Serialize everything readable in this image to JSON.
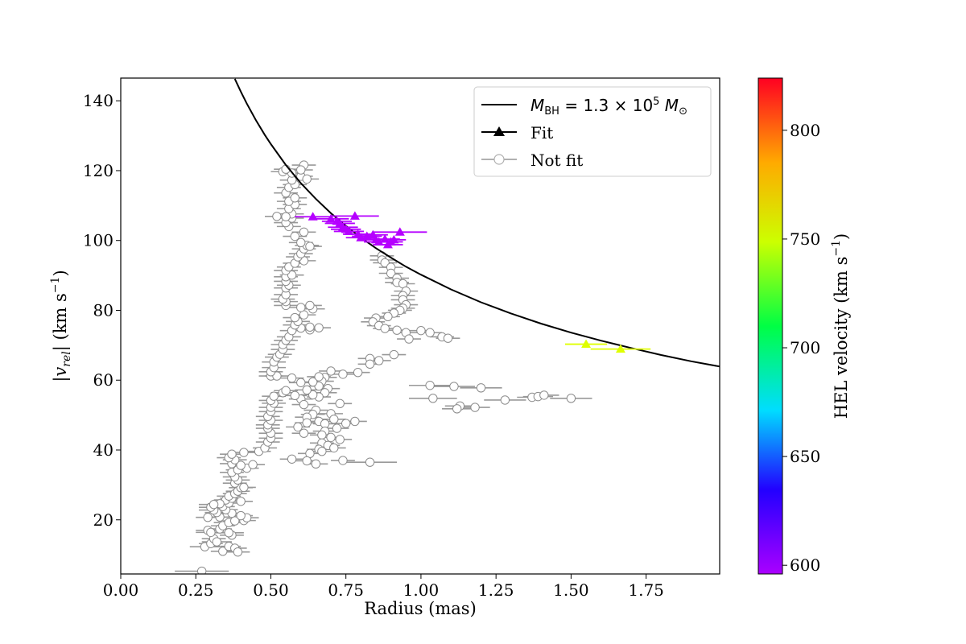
{
  "chart_data": {
    "type": "scatter",
    "xlabel": "Radius (mas)",
    "ylabel_prefix": "|",
    "ylabel_var": "v",
    "ylabel_sub": "rel",
    "ylabel_mid": "| (km s",
    "ylabel_sup": "−1",
    "ylabel_suffix": ")",
    "xlim": [
      0.0,
      1.995
    ],
    "ylim": [
      4.5,
      146.5
    ],
    "xticks": [
      0.0,
      0.25,
      0.5,
      0.75,
      1.0,
      1.25,
      1.5,
      1.75
    ],
    "xtick_labels": [
      "0.00",
      "0.25",
      "0.50",
      "0.75",
      "1.00",
      "1.25",
      "1.50",
      "1.75"
    ],
    "yticks": [
      20,
      40,
      60,
      80,
      100,
      120,
      140
    ],
    "ytick_labels": [
      "20",
      "40",
      "60",
      "80",
      "100",
      "120",
      "140"
    ],
    "legend": {
      "placement": "top-right",
      "entries": [
        {
          "label_prefix": "M",
          "label_sub": "BH",
          "label_mid": " = 1.3 × 10",
          "label_sup": "5",
          "label_mid2": " M",
          "label_sub2": "⊙",
          "kind": "line",
          "color": "#000000"
        },
        {
          "label": "Fit",
          "kind": "triangle",
          "color": "#000000"
        },
        {
          "label": "Not fit",
          "kind": "circle",
          "color": "#b0b0b0"
        }
      ]
    },
    "colorbar": {
      "label_text": "HEL velocity (km s",
      "label_sup": "−1",
      "label_end": ")",
      "min": 596,
      "max": 824,
      "ticks": [
        600,
        650,
        700,
        750,
        800
      ],
      "tick_labels": [
        "600",
        "650",
        "700",
        "750",
        "800"
      ],
      "colormap": "gist_rainbow_r"
    },
    "model_curve": {
      "name": "M_BH = 1.3e5 Msun",
      "formula": "v = 90.2 / sqrt(r)",
      "x": [
        0.38,
        0.4,
        0.42,
        0.45,
        0.48,
        0.5,
        0.55,
        0.6,
        0.65,
        0.7,
        0.75,
        0.8,
        0.85,
        0.9,
        0.95,
        1.0,
        1.1,
        1.2,
        1.3,
        1.4,
        1.5,
        1.6,
        1.7,
        1.8,
        1.9,
        1.995
      ],
      "y": [
        146.3,
        142.6,
        139.2,
        134.5,
        130.2,
        127.6,
        121.6,
        116.4,
        111.9,
        107.8,
        104.2,
        100.8,
        97.8,
        95.1,
        92.5,
        90.2,
        86.0,
        82.3,
        79.1,
        76.2,
        73.6,
        71.3,
        69.2,
        67.2,
        65.4,
        63.9
      ],
      "color": "#000000"
    },
    "fit_points": [
      {
        "x": 0.64,
        "y": 106.8,
        "xerr": 0.06,
        "vel": 598
      },
      {
        "x": 0.7,
        "y": 106.2,
        "xerr": 0.06,
        "vel": 598
      },
      {
        "x": 0.72,
        "y": 105.5,
        "xerr": 0.05,
        "vel": 598
      },
      {
        "x": 0.73,
        "y": 104.9,
        "xerr": 0.05,
        "vel": 598
      },
      {
        "x": 0.74,
        "y": 103.8,
        "xerr": 0.05,
        "vel": 598
      },
      {
        "x": 0.75,
        "y": 103.2,
        "xerr": 0.05,
        "vel": 598
      },
      {
        "x": 0.76,
        "y": 102.6,
        "xerr": 0.05,
        "vel": 598
      },
      {
        "x": 0.78,
        "y": 107.0,
        "xerr": 0.08,
        "vel": 598
      },
      {
        "x": 0.79,
        "y": 101.8,
        "xerr": 0.05,
        "vel": 598
      },
      {
        "x": 0.8,
        "y": 100.8,
        "xerr": 0.05,
        "vel": 598
      },
      {
        "x": 0.82,
        "y": 101.2,
        "xerr": 0.05,
        "vel": 598
      },
      {
        "x": 0.84,
        "y": 101.6,
        "xerr": 0.05,
        "vel": 598
      },
      {
        "x": 0.85,
        "y": 100.2,
        "xerr": 0.05,
        "vel": 598
      },
      {
        "x": 0.86,
        "y": 99.6,
        "xerr": 0.05,
        "vel": 598
      },
      {
        "x": 0.88,
        "y": 100.4,
        "xerr": 0.05,
        "vel": 598
      },
      {
        "x": 0.89,
        "y": 98.8,
        "xerr": 0.05,
        "vel": 598
      },
      {
        "x": 0.9,
        "y": 99.6,
        "xerr": 0.04,
        "vel": 598
      },
      {
        "x": 0.91,
        "y": 100.2,
        "xerr": 0.04,
        "vel": 598
      },
      {
        "x": 0.93,
        "y": 102.4,
        "xerr": 0.09,
        "vel": 598
      },
      {
        "x": 1.55,
        "y": 70.3,
        "xerr": 0.07,
        "vel": 770
      },
      {
        "x": 1.665,
        "y": 68.9,
        "xerr": 0.1,
        "vel": 770
      }
    ],
    "not_fit_points": [
      [
        0.27,
        5.3,
        0.09
      ],
      [
        0.28,
        12.3,
        0.05
      ],
      [
        0.3,
        13.2,
        0.04
      ],
      [
        0.31,
        14.6,
        0.04
      ],
      [
        0.32,
        13.7,
        0.05
      ],
      [
        0.34,
        11.0,
        0.04
      ],
      [
        0.36,
        12.4,
        0.04
      ],
      [
        0.38,
        11.9,
        0.04
      ],
      [
        0.39,
        10.8,
        0.04
      ],
      [
        0.37,
        15.6,
        0.04
      ],
      [
        0.36,
        16.3,
        0.05
      ],
      [
        0.29,
        17.0,
        0.04
      ],
      [
        0.3,
        16.4,
        0.05
      ],
      [
        0.33,
        17.4,
        0.04
      ],
      [
        0.34,
        18.3,
        0.04
      ],
      [
        0.36,
        19.2,
        0.05
      ],
      [
        0.38,
        19.7,
        0.04
      ],
      [
        0.41,
        19.8,
        0.04
      ],
      [
        0.42,
        20.6,
        0.04
      ],
      [
        0.4,
        21.2,
        0.04
      ],
      [
        0.33,
        20.8,
        0.05
      ],
      [
        0.29,
        20.7,
        0.04
      ],
      [
        0.37,
        21.9,
        0.04
      ],
      [
        0.32,
        22.1,
        0.04
      ],
      [
        0.35,
        22.9,
        0.04
      ],
      [
        0.31,
        22.8,
        0.05
      ],
      [
        0.3,
        23.6,
        0.04
      ],
      [
        0.34,
        23.8,
        0.04
      ],
      [
        0.36,
        24.8,
        0.04
      ],
      [
        0.35,
        25.7,
        0.04
      ],
      [
        0.33,
        24.6,
        0.04
      ],
      [
        0.31,
        24.4,
        0.05
      ],
      [
        0.4,
        25.3,
        0.04
      ],
      [
        0.37,
        26.2,
        0.04
      ],
      [
        0.36,
        26.8,
        0.04
      ],
      [
        0.38,
        27.5,
        0.04
      ],
      [
        0.39,
        28.2,
        0.04
      ],
      [
        0.4,
        29.2,
        0.04
      ],
      [
        0.41,
        29.3,
        0.04
      ],
      [
        0.38,
        30.5,
        0.04
      ],
      [
        0.39,
        31.4,
        0.04
      ],
      [
        0.38,
        32.3,
        0.04
      ],
      [
        0.37,
        33.6,
        0.04
      ],
      [
        0.39,
        34.3,
        0.04
      ],
      [
        0.42,
        34.8,
        0.04
      ],
      [
        0.44,
        35.8,
        0.04
      ],
      [
        0.4,
        35.6,
        0.04
      ],
      [
        0.37,
        36.1,
        0.04
      ],
      [
        0.38,
        37.2,
        0.04
      ],
      [
        0.36,
        37.8,
        0.04
      ],
      [
        0.37,
        38.8,
        0.04
      ],
      [
        0.41,
        39.3,
        0.04
      ],
      [
        0.46,
        39.6,
        0.04
      ],
      [
        0.48,
        40.6,
        0.04
      ],
      [
        0.49,
        42.3,
        0.04
      ],
      [
        0.5,
        43.4,
        0.04
      ],
      [
        0.5,
        44.8,
        0.04
      ],
      [
        0.49,
        46.2,
        0.04
      ],
      [
        0.49,
        47.2,
        0.04
      ],
      [
        0.5,
        48.5,
        0.04
      ],
      [
        0.49,
        49.6,
        0.04
      ],
      [
        0.5,
        51.0,
        0.04
      ],
      [
        0.5,
        52.2,
        0.04
      ],
      [
        0.51,
        53.4,
        0.04
      ],
      [
        0.5,
        54.2,
        0.04
      ],
      [
        0.51,
        55.4,
        0.04
      ],
      [
        0.54,
        56.4,
        0.04
      ],
      [
        0.55,
        57.0,
        0.04
      ],
      [
        0.5,
        61.2,
        0.04
      ],
      [
        0.52,
        61.2,
        0.04
      ],
      [
        0.5,
        62.4,
        0.04
      ],
      [
        0.51,
        63.6,
        0.04
      ],
      [
        0.51,
        65.2,
        0.04
      ],
      [
        0.52,
        66.6,
        0.04
      ],
      [
        0.53,
        67.4,
        0.04
      ],
      [
        0.54,
        68.8,
        0.04
      ],
      [
        0.54,
        70.2,
        0.04
      ],
      [
        0.55,
        71.4,
        0.04
      ],
      [
        0.56,
        72.4,
        0.04
      ],
      [
        0.57,
        74.2,
        0.04
      ],
      [
        0.6,
        74.9,
        0.04
      ],
      [
        0.63,
        74.4,
        0.04
      ],
      [
        0.63,
        75.2,
        0.04
      ],
      [
        0.66,
        75.0,
        0.04
      ],
      [
        0.58,
        75.8,
        0.04
      ],
      [
        0.59,
        76.8,
        0.04
      ],
      [
        0.58,
        77.9,
        0.04
      ],
      [
        0.61,
        78.7,
        0.04
      ],
      [
        0.6,
        80.8,
        0.04
      ],
      [
        0.64,
        80.4,
        0.04
      ],
      [
        0.63,
        81.4,
        0.04
      ],
      [
        0.55,
        81.4,
        0.04
      ],
      [
        0.55,
        82.5,
        0.04
      ],
      [
        0.54,
        83.2,
        0.04
      ],
      [
        0.55,
        84.5,
        0.04
      ],
      [
        0.55,
        86.4,
        0.04
      ],
      [
        0.56,
        87.2,
        0.04
      ],
      [
        0.55,
        88.3,
        0.04
      ],
      [
        0.55,
        89.6,
        0.04
      ],
      [
        0.57,
        90.1,
        0.04
      ],
      [
        0.55,
        91.4,
        0.04
      ],
      [
        0.56,
        92.4,
        0.04
      ],
      [
        0.58,
        93.5,
        0.04
      ],
      [
        0.61,
        94.2,
        0.04
      ],
      [
        0.59,
        95.3,
        0.04
      ],
      [
        0.6,
        96.2,
        0.04
      ],
      [
        0.61,
        97.6,
        0.04
      ],
      [
        0.62,
        98.6,
        0.04
      ],
      [
        0.63,
        98.3,
        0.04
      ],
      [
        0.6,
        99.4,
        0.04
      ],
      [
        0.58,
        101.2,
        0.04
      ],
      [
        0.61,
        102.4,
        0.04
      ],
      [
        0.56,
        104.0,
        0.04
      ],
      [
        0.55,
        105.1,
        0.04
      ],
      [
        0.57,
        106.4,
        0.04
      ],
      [
        0.57,
        107.6,
        0.04
      ],
      [
        0.55,
        106.8,
        0.04
      ],
      [
        0.52,
        106.9,
        0.04
      ],
      [
        0.56,
        109.1,
        0.04
      ],
      [
        0.58,
        110.3,
        0.04
      ],
      [
        0.56,
        111.2,
        0.04
      ],
      [
        0.58,
        112.2,
        0.04
      ],
      [
        0.55,
        113.6,
        0.04
      ],
      [
        0.56,
        115.2,
        0.04
      ],
      [
        0.58,
        116.0,
        0.04
      ],
      [
        0.57,
        117.3,
        0.04
      ],
      [
        0.6,
        118.4,
        0.04
      ],
      [
        0.57,
        119.3,
        0.04
      ],
      [
        0.54,
        119.7,
        0.04
      ],
      [
        0.55,
        120.4,
        0.04
      ],
      [
        0.61,
        121.6,
        0.04
      ],
      [
        0.6,
        120.2,
        0.04
      ],
      [
        0.62,
        117.6,
        0.04
      ],
      [
        0.87,
        95.6,
        0.04
      ],
      [
        0.87,
        94.4,
        0.04
      ],
      [
        0.88,
        93.6,
        0.04
      ],
      [
        0.9,
        92.3,
        0.04
      ],
      [
        0.9,
        90.6,
        0.04
      ],
      [
        0.92,
        89.2,
        0.04
      ],
      [
        0.92,
        88.0,
        0.04
      ],
      [
        0.94,
        87.6,
        0.04
      ],
      [
        0.95,
        85.5,
        0.04
      ],
      [
        0.94,
        84.2,
        0.04
      ],
      [
        0.94,
        83.0,
        0.04
      ],
      [
        0.95,
        81.6,
        0.04
      ],
      [
        0.94,
        80.6,
        0.04
      ],
      [
        0.93,
        80.0,
        0.04
      ],
      [
        0.91,
        79.2,
        0.04
      ],
      [
        0.89,
        78.2,
        0.04
      ],
      [
        0.85,
        77.8,
        0.04
      ],
      [
        0.84,
        76.7,
        0.04
      ],
      [
        0.86,
        75.6,
        0.04
      ],
      [
        0.88,
        74.8,
        0.04
      ],
      [
        0.92,
        74.3,
        0.04
      ],
      [
        0.95,
        73.6,
        0.04
      ],
      [
        0.96,
        71.8,
        0.04
      ],
      [
        1.0,
        74.2,
        0.04
      ],
      [
        1.03,
        73.6,
        0.04
      ],
      [
        1.07,
        72.4,
        0.04
      ],
      [
        1.09,
        72.0,
        0.04
      ],
      [
        0.83,
        66.2,
        0.04
      ],
      [
        0.86,
        65.6,
        0.04
      ],
      [
        0.83,
        64.6,
        0.04
      ],
      [
        0.91,
        67.3,
        0.04
      ],
      [
        0.68,
        60.8,
        0.04
      ],
      [
        0.7,
        62.6,
        0.04
      ],
      [
        0.74,
        61.7,
        0.04
      ],
      [
        0.79,
        62.2,
        0.04
      ],
      [
        0.67,
        59.7,
        0.04
      ],
      [
        0.66,
        58.3,
        0.04
      ],
      [
        0.69,
        57.6,
        0.04
      ],
      [
        0.68,
        56.4,
        0.04
      ],
      [
        0.66,
        55.2,
        0.04
      ],
      [
        0.64,
        55.8,
        0.04
      ],
      [
        0.6,
        54.6,
        0.04
      ],
      [
        0.58,
        55.6,
        0.04
      ],
      [
        0.62,
        57.2,
        0.04
      ],
      [
        0.64,
        59.5,
        0.04
      ],
      [
        0.66,
        61.0,
        0.04
      ],
      [
        0.57,
        60.6,
        0.04
      ],
      [
        0.6,
        59.3,
        0.04
      ],
      [
        0.61,
        53.0,
        0.04
      ],
      [
        0.65,
        51.4,
        0.04
      ],
      [
        0.73,
        53.3,
        0.04
      ],
      [
        0.7,
        50.4,
        0.04
      ],
      [
        0.64,
        50.2,
        0.04
      ],
      [
        0.62,
        49.4,
        0.04
      ],
      [
        0.66,
        48.2,
        0.04
      ],
      [
        0.68,
        47.5,
        0.04
      ],
      [
        0.71,
        48.8,
        0.04
      ],
      [
        0.75,
        47.6,
        0.04
      ],
      [
        0.78,
        48.2,
        0.04
      ],
      [
        0.72,
        46.2,
        0.04
      ],
      [
        0.68,
        45.4,
        0.04
      ],
      [
        0.67,
        44.3,
        0.04
      ],
      [
        0.7,
        43.6,
        0.04
      ],
      [
        0.73,
        43.0,
        0.04
      ],
      [
        0.67,
        42.0,
        0.04
      ],
      [
        0.69,
        41.3,
        0.04
      ],
      [
        0.71,
        40.6,
        0.04
      ],
      [
        0.66,
        40.2,
        0.04
      ],
      [
        0.67,
        39.6,
        0.04
      ],
      [
        0.63,
        39.0,
        0.04
      ],
      [
        0.61,
        44.8,
        0.04
      ],
      [
        0.59,
        46.6,
        0.04
      ],
      [
        0.62,
        47.8,
        0.04
      ],
      [
        0.57,
        37.4,
        0.04
      ],
      [
        0.62,
        36.9,
        0.04
      ],
      [
        0.65,
        36.0,
        0.04
      ],
      [
        0.74,
        37.0,
        0.04
      ],
      [
        0.83,
        36.5,
        0.09
      ],
      [
        1.03,
        58.5,
        0.07
      ],
      [
        1.11,
        58.2,
        0.07
      ],
      [
        1.2,
        57.8,
        0.07
      ],
      [
        1.04,
        54.8,
        0.08
      ],
      [
        1.13,
        52.6,
        0.05
      ],
      [
        1.12,
        51.8,
        0.05
      ],
      [
        1.18,
        52.2,
        0.05
      ],
      [
        1.28,
        54.3,
        0.07
      ],
      [
        1.37,
        55.1,
        0.05
      ],
      [
        1.39,
        55.3,
        0.05
      ],
      [
        1.41,
        55.7,
        0.05
      ],
      [
        1.5,
        54.8,
        0.07
      ]
    ]
  }
}
